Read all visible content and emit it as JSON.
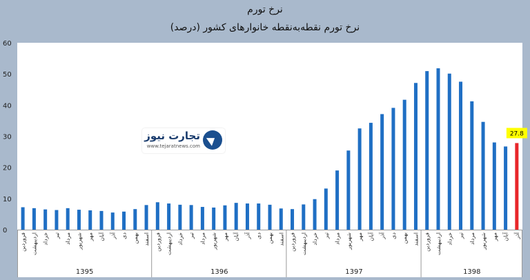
{
  "titles": {
    "main": "نرخ تورم",
    "sub": "نرخ تورم نقطه‌به‌نقطه خانوارهای کشور (درصد)"
  },
  "logo": {
    "name": "تجارت نیوز",
    "url": "www.tejaratnews.com"
  },
  "colors": {
    "background": "#a9b9cc",
    "plot": "#ffffff",
    "bar": "#1f6fc4",
    "highlight": "#e8262a",
    "label_bg": "#ffff00"
  },
  "chart_data": {
    "type": "bar",
    "ylim": [
      0,
      60
    ],
    "yticks": [
      0,
      10,
      20,
      30,
      40,
      50,
      60
    ],
    "grid": false,
    "groups": [
      {
        "label": "1395",
        "count": 12
      },
      {
        "label": "1396",
        "count": 12
      },
      {
        "label": "1397",
        "count": 12
      },
      {
        "label": "1398",
        "count": 9
      }
    ],
    "categories": [
      "فروردین",
      "اردیبهشت",
      "خرداد",
      "تیر",
      "مرداد",
      "شهریور",
      "مهر",
      "آبان",
      "آذر",
      "دی",
      "بهمن",
      "اسفند",
      "فروردین",
      "اردیبهشت",
      "خرداد",
      "تیر",
      "مرداد",
      "شهریور",
      "مهر",
      "آبان",
      "آذر",
      "دی",
      "بهمن",
      "اسفند",
      "فروردین",
      "اردیبهشت",
      "خرداد",
      "تیر",
      "مرداد",
      "شهریور",
      "مهر",
      "آبان",
      "آذر",
      "دی",
      "بهمن",
      "اسفند",
      "فروردین",
      "اردیبهشت",
      "خرداد",
      "تیر",
      "مرداد",
      "شهریور",
      "مهر",
      "آبان",
      "آذر"
    ],
    "values": [
      7.2,
      6.9,
      6.5,
      6.3,
      6.9,
      6.4,
      6.2,
      6.0,
      5.5,
      5.8,
      6.6,
      7.9,
      8.8,
      8.4,
      8.0,
      7.9,
      7.3,
      7.1,
      7.8,
      8.6,
      8.4,
      8.4,
      8.0,
      6.8,
      6.6,
      8.1,
      9.8,
      13.2,
      19.0,
      25.4,
      32.5,
      34.3,
      37.1,
      39.1,
      41.7,
      47.1,
      50.9,
      51.8,
      50.1,
      47.5,
      41.2,
      34.6,
      28.0,
      26.7,
      27.8
    ],
    "highlight_index": 44,
    "highlight_label": "27.8"
  }
}
